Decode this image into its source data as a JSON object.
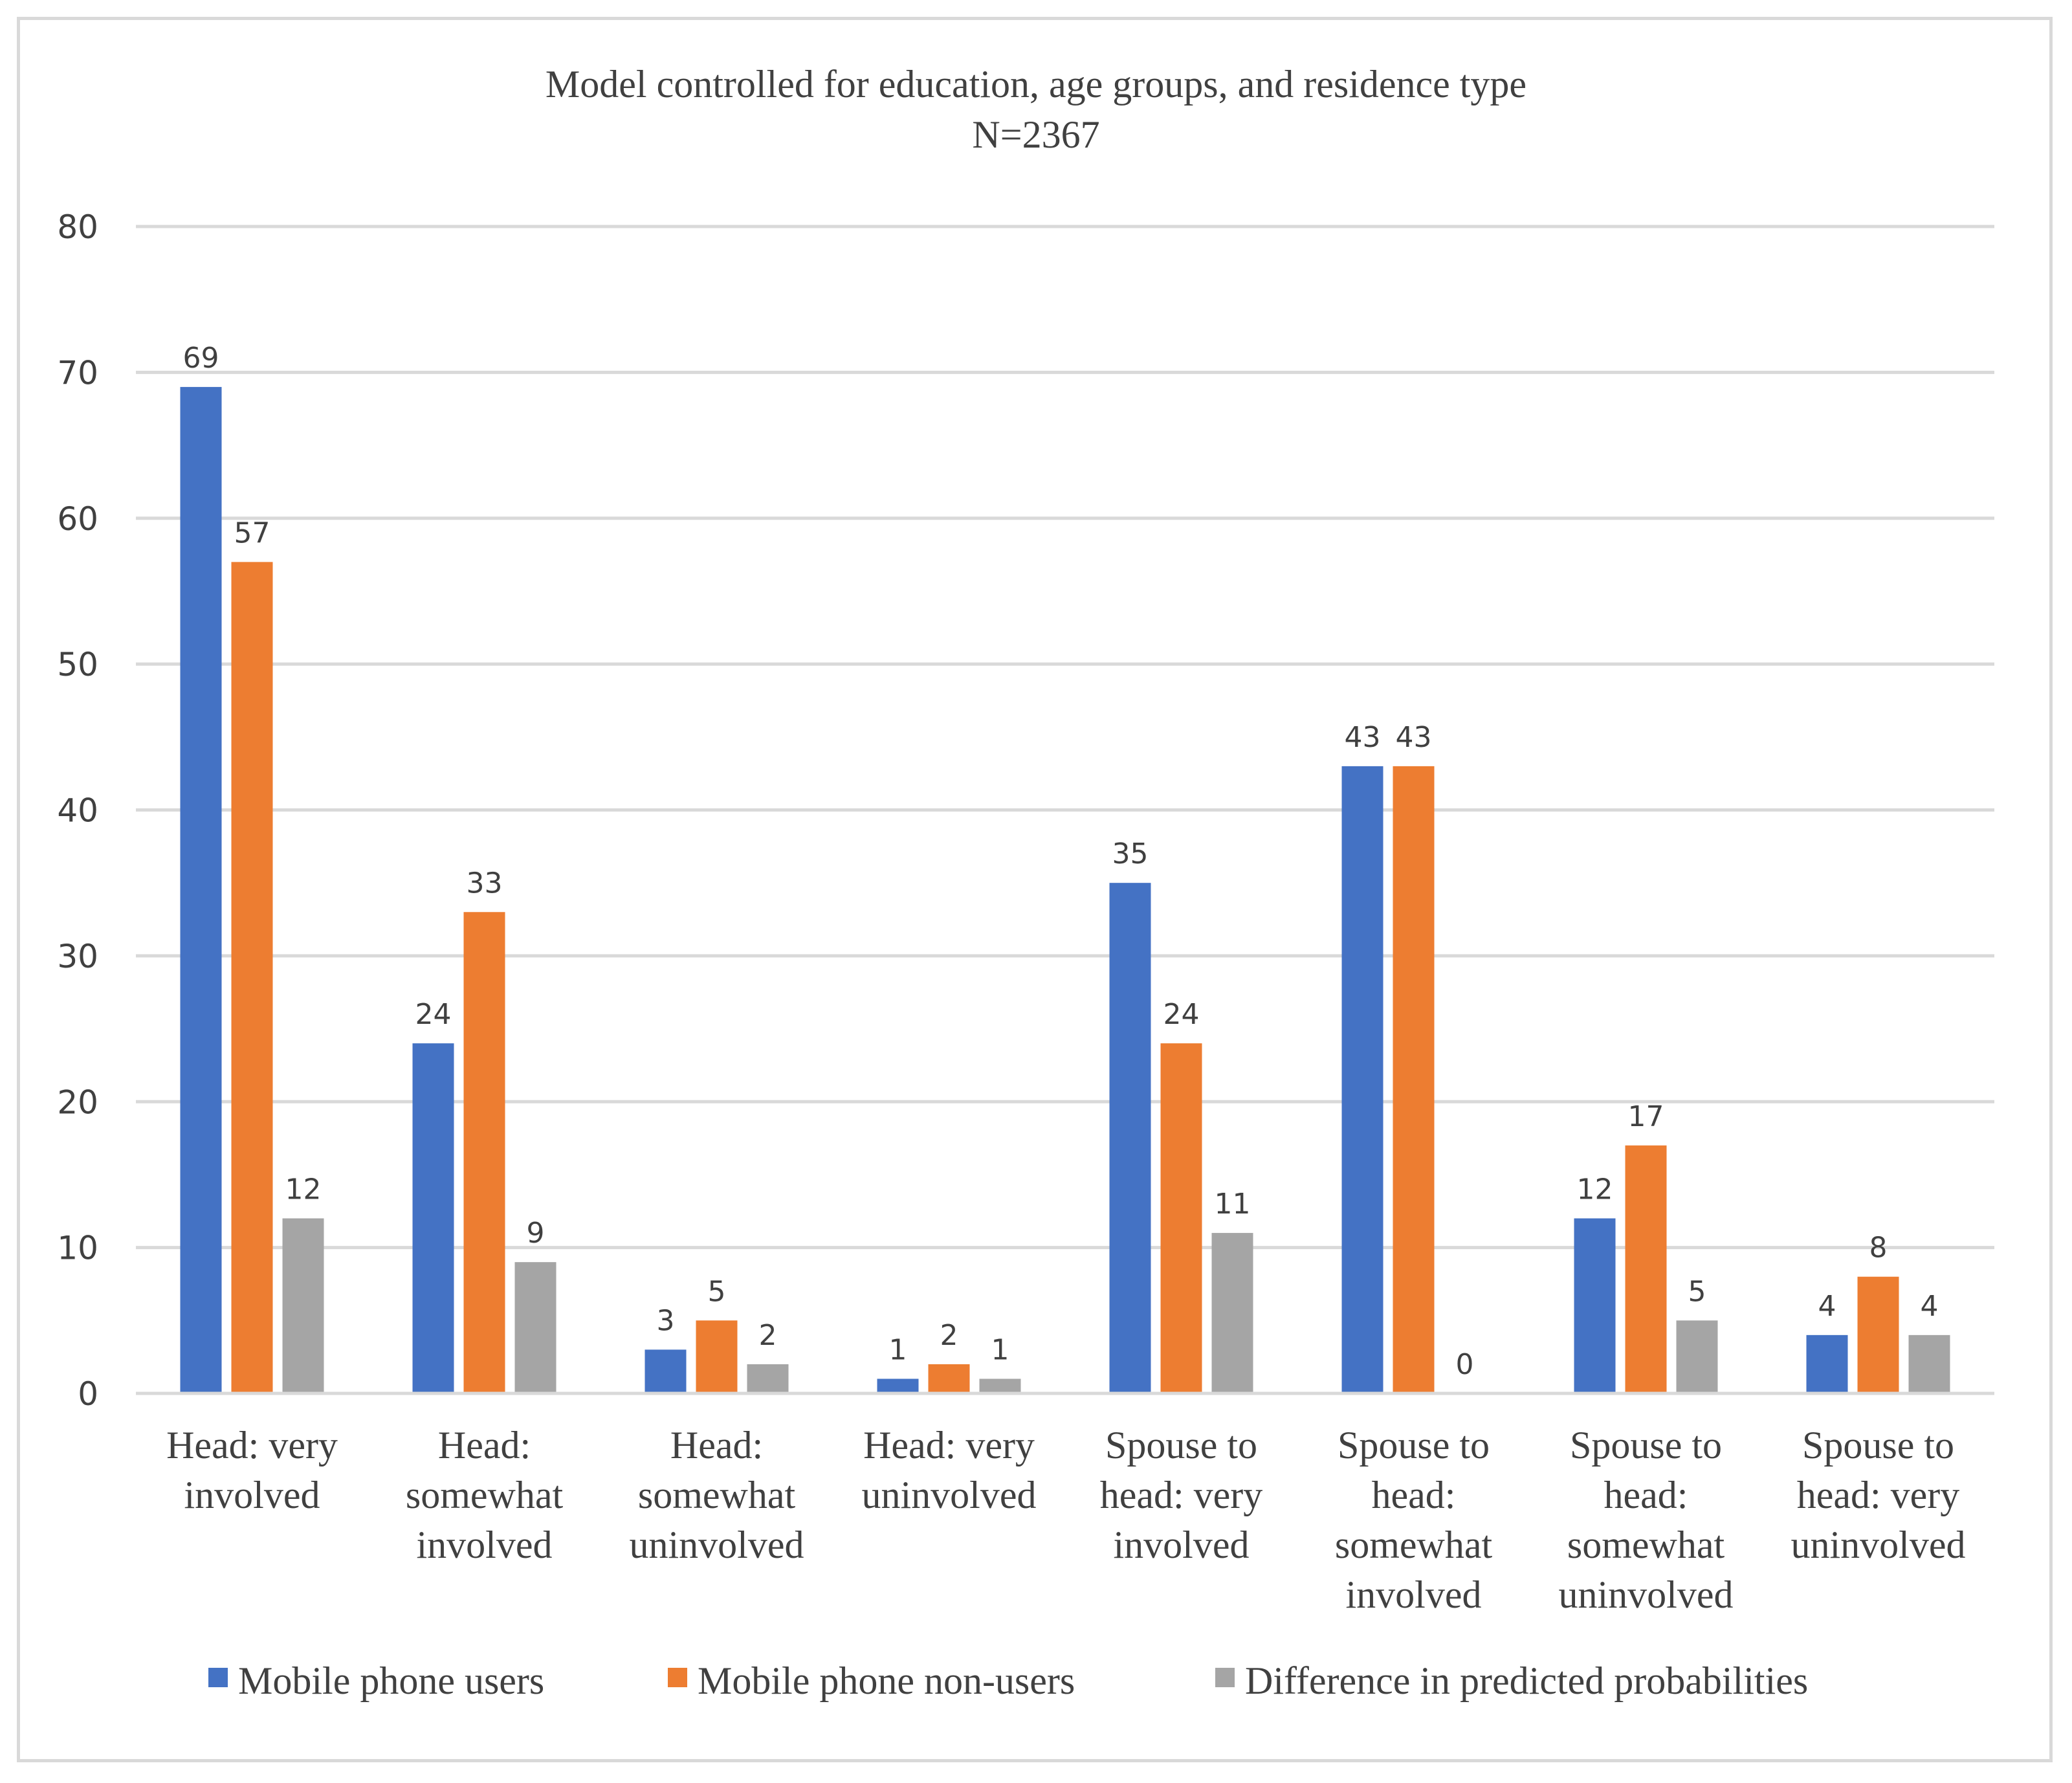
{
  "chart_data": {
    "type": "bar",
    "title": "Model controlled for education, age groups, and residence type",
    "subtitle": "N=2367",
    "xlabel": "",
    "ylabel": "",
    "ylim": [
      0,
      80
    ],
    "yticks": [
      "0",
      "10",
      "20",
      "30",
      "40",
      "50",
      "60",
      "70",
      "80"
    ],
    "grid": true,
    "legend_position": "bottom",
    "categories": [
      [
        "Head: very",
        "involved"
      ],
      [
        "Head:",
        "somewhat",
        "involved"
      ],
      [
        "Head:",
        "somewhat",
        "uninvolved"
      ],
      [
        "Head: very",
        "uninvolved"
      ],
      [
        "Spouse to",
        "head: very",
        "involved"
      ],
      [
        "Spouse to",
        "head:",
        "somewhat",
        "involved"
      ],
      [
        "Spouse to",
        "head:",
        "somewhat",
        "uninvolved"
      ],
      [
        "Spouse to",
        "head: very",
        "uninvolved"
      ]
    ],
    "series": [
      {
        "name": "Mobile phone users",
        "color": "#4472c4",
        "values": [
          69,
          24,
          3,
          1,
          35,
          43,
          12,
          4
        ]
      },
      {
        "name": "Mobile phone non-users",
        "color": "#ed7d31",
        "values": [
          57,
          33,
          5,
          2,
          24,
          43,
          17,
          8
        ]
      },
      {
        "name": "Difference in predicted probabilities",
        "color": "#a5a5a5",
        "values": [
          12,
          9,
          2,
          1,
          11,
          0,
          5,
          4
        ]
      }
    ]
  }
}
